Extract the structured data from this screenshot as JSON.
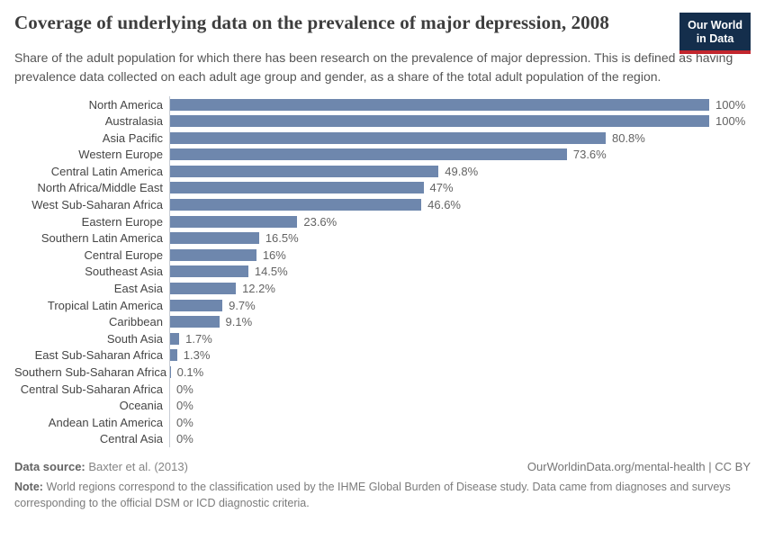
{
  "header": {
    "title": "Coverage of underlying data on the prevalence of major depression, 2008",
    "subtitle": "Share of the adult population for which there has been research on the prevalence of major depression. This is defined as having prevalence data collected on each adult age group and gender, as a share of the total adult population of the region.",
    "logo": {
      "line1": "Our World",
      "line2": "in Data"
    }
  },
  "colors": {
    "bar": "#6e87ad",
    "axis_line": "#c7ccd4",
    "logo_bg": "#142e4c",
    "logo_accent": "#c2262e"
  },
  "chart_data": {
    "type": "bar",
    "orientation": "horizontal",
    "title": "Coverage of underlying data on the prevalence of major depression, 2008",
    "categories": [
      "North America",
      "Australasia",
      "Asia Pacific",
      "Western Europe",
      "Central Latin America",
      "North Africa/Middle East",
      "West Sub-Saharan Africa",
      "Eastern Europe",
      "Southern Latin America",
      "Central Europe",
      "Southeast Asia",
      "East Asia",
      "Tropical Latin America",
      "Caribbean",
      "South Asia",
      "East Sub-Saharan Africa",
      "Southern Sub-Saharan Africa",
      "Central Sub-Saharan Africa",
      "Oceania",
      "Andean Latin America",
      "Central Asia"
    ],
    "values": [
      100,
      100,
      80.8,
      73.6,
      49.8,
      47,
      46.6,
      23.6,
      16.5,
      16,
      14.5,
      12.2,
      9.7,
      9.1,
      1.7,
      1.3,
      0.1,
      0,
      0,
      0,
      0
    ],
    "value_labels": [
      "100%",
      "100%",
      "80.8%",
      "73.6%",
      "49.8%",
      "47%",
      "46.6%",
      "23.6%",
      "16.5%",
      "16%",
      "14.5%",
      "12.2%",
      "9.7%",
      "9.1%",
      "1.7%",
      "1.3%",
      "0.1%",
      "0%",
      "0%",
      "0%",
      "0%"
    ],
    "xlabel": "",
    "ylabel": "",
    "xlim": [
      0,
      100
    ],
    "grid": false,
    "legend": false,
    "value_labels_position": "end-of-bar"
  },
  "footer": {
    "datasource_label": "Data source:",
    "datasource_value": "Baxter et al. (2013)",
    "attribution": "OurWorldinData.org/mental-health | CC BY",
    "note_label": "Note:",
    "note_text": "World regions correspond to the classification used by the IHME Global Burden of Disease study. Data came from diagnoses and surveys corresponding to the official DSM or ICD diagnostic criteria."
  }
}
